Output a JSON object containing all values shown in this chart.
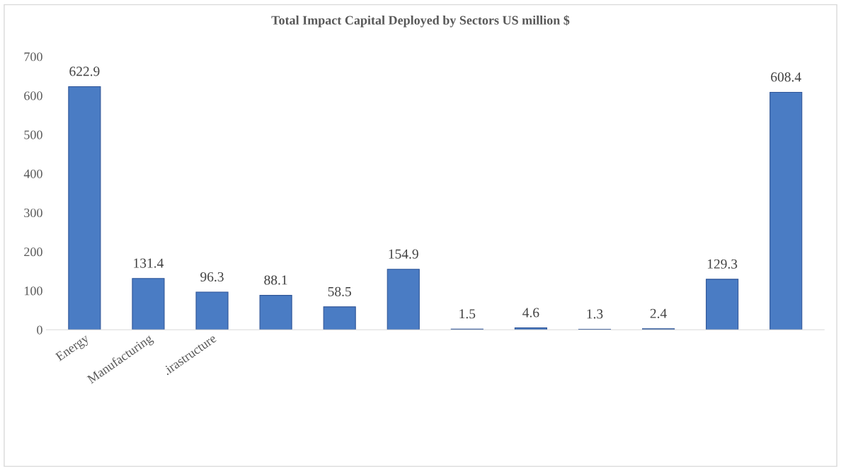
{
  "chart_data": {
    "type": "bar",
    "title": "Total Impact Capital Deployed by Sectors US million $",
    "categories": [
      "Energy",
      "Manufacturing",
      ".irastructure",
      null,
      null,
      null,
      null,
      null,
      null,
      null,
      null,
      null
    ],
    "values": [
      622.9,
      131.4,
      96.3,
      88.1,
      58.5,
      154.9,
      1.5,
      4.6,
      1.3,
      2.4,
      129.3,
      608.4
    ],
    "color": "#4a7cc4",
    "ylim": [
      0,
      700
    ],
    "yticks": [
      0,
      100,
      200,
      300,
      400,
      500,
      600,
      700
    ],
    "grid": false,
    "data_labels": true
  }
}
